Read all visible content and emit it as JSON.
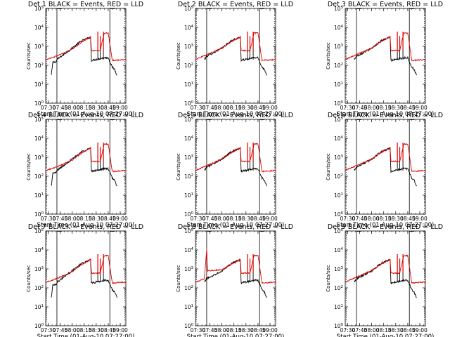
{
  "chart_data": [
    {
      "type": "line",
      "title": "Det 1  BLACK = Events, RED = LLD",
      "xlabel": "Start Time (01-Aug-10 07:27:00)",
      "ylabel": "Counts/sec",
      "x_ticks": [
        "07:30",
        "07:45",
        "08:00",
        "08:15",
        "08:30",
        "08:45",
        "09:00"
      ],
      "y_ticks": [
        "10^0",
        "10^1",
        "10^2",
        "10^3",
        "10^4",
        "10^5"
      ],
      "yscale": "log",
      "xlim": [
        "07:27",
        "09:07"
      ],
      "ylim": [
        1,
        100000
      ],
      "markers": [
        "07:41",
        "08:47"
      ],
      "series": [
        {
          "name": "Events",
          "color": "#000000",
          "x": [
            "07:34",
            "07:36",
            "07:40",
            "07:41",
            "08:00",
            "08:12",
            "08:23",
            "08:24",
            "08:40",
            "08:45",
            "08:50",
            "08:53",
            "08:56"
          ],
          "y": [
            30,
            150,
            150,
            200,
            800,
            2000,
            3000,
            180,
            250,
            250,
            80,
            60,
            30
          ]
        },
        {
          "name": "LLD",
          "color": "#e00000",
          "x": [
            "07:27",
            "07:40",
            "08:00",
            "08:12",
            "08:23",
            "08:24",
            "08:35",
            "08:40",
            "08:45",
            "08:50",
            "09:07"
          ],
          "y": [
            200,
            300,
            700,
            1700,
            3200,
            600,
            600,
            5000,
            5000,
            180,
            200
          ]
        }
      ]
    },
    {
      "type": "line",
      "title": "Det 2  BLACK = Events, RED = LLD",
      "xlabel": "Start Time (01-Aug-10 07:27:00)",
      "ylabel": "Counts/sec",
      "x_ticks": [
        "07:30",
        "07:45",
        "08:00",
        "08:15",
        "08:30",
        "08:45",
        "09:00"
      ],
      "y_ticks": [
        "10^0",
        "10^1",
        "10^2",
        "10^3",
        "10^4",
        "10^5"
      ],
      "yscale": "log",
      "xlim": [
        "07:27",
        "09:07"
      ],
      "ylim": [
        1,
        100000
      ],
      "markers": [
        "07:41",
        "08:47"
      ],
      "series": [
        {
          "name": "Events",
          "color": "#000000",
          "x": [
            "07:38",
            "07:41",
            "08:00",
            "08:12",
            "08:23",
            "08:24",
            "08:40",
            "08:45",
            "08:50",
            "08:53",
            "08:56"
          ],
          "y": [
            200,
            300,
            800,
            2000,
            3000,
            180,
            250,
            250,
            80,
            60,
            30
          ]
        },
        {
          "name": "LLD",
          "color": "#e00000",
          "x": [
            "07:27",
            "07:40",
            "08:00",
            "08:12",
            "08:23",
            "08:24",
            "08:35",
            "08:40",
            "08:45",
            "08:50",
            "09:07"
          ],
          "y": [
            200,
            350,
            800,
            1800,
            3200,
            600,
            600,
            5000,
            5000,
            180,
            200
          ]
        }
      ]
    },
    {
      "type": "line",
      "title": "Det 3  BLACK = Events, RED = LLD",
      "xlabel": "Start Time (01-Aug-10 07:27:00)",
      "ylabel": "Counts/sec",
      "x_ticks": [
        "07:30",
        "07:45",
        "08:00",
        "08:15",
        "08:30",
        "08:45",
        "09:00"
      ],
      "y_ticks": [
        "10^0",
        "10^1",
        "10^2",
        "10^3",
        "10^4",
        "10^5"
      ],
      "yscale": "log",
      "xlim": [
        "07:27",
        "09:07"
      ],
      "ylim": [
        1,
        100000
      ],
      "markers": [
        "07:41",
        "08:47"
      ],
      "series": [
        {
          "name": "Events",
          "color": "#000000",
          "x": [
            "07:38",
            "07:41",
            "08:00",
            "08:12",
            "08:23",
            "08:24",
            "08:40",
            "08:45",
            "08:50",
            "08:53",
            "08:56"
          ],
          "y": [
            200,
            300,
            800,
            2000,
            3000,
            180,
            250,
            250,
            80,
            60,
            30
          ]
        },
        {
          "name": "LLD",
          "color": "#e00000",
          "x": [
            "07:27",
            "07:40",
            "08:00",
            "08:12",
            "08:23",
            "08:24",
            "08:35",
            "08:40",
            "08:45",
            "08:50",
            "09:07"
          ],
          "y": [
            200,
            350,
            800,
            1800,
            3200,
            600,
            600,
            5000,
            5000,
            180,
            200
          ]
        }
      ]
    },
    {
      "type": "line",
      "title": "Det 4  BLACK = Events, RED = LLD",
      "xlabel": "Start Time (01-Aug-10 07:27:00)",
      "ylabel": "Counts/sec",
      "x_ticks": [
        "07:30",
        "07:45",
        "08:00",
        "08:15",
        "08:30",
        "08:45",
        "09:00"
      ],
      "y_ticks": [
        "10^0",
        "10^1",
        "10^2",
        "10^3",
        "10^4",
        "10^5"
      ],
      "yscale": "log",
      "xlim": [
        "07:27",
        "09:07"
      ],
      "ylim": [
        1,
        100000
      ],
      "markers": [
        "07:41",
        "08:47"
      ],
      "series": [
        {
          "name": "Events",
          "color": "#000000",
          "x": [
            "07:34",
            "07:36",
            "07:40",
            "07:41",
            "08:00",
            "08:12",
            "08:23",
            "08:24",
            "08:40",
            "08:45",
            "08:50",
            "08:53",
            "08:56"
          ],
          "y": [
            30,
            150,
            150,
            200,
            800,
            2000,
            3000,
            180,
            250,
            250,
            80,
            60,
            30
          ]
        },
        {
          "name": "LLD",
          "color": "#e00000",
          "x": [
            "07:27",
            "07:40",
            "08:00",
            "08:12",
            "08:23",
            "08:24",
            "08:35",
            "08:40",
            "08:45",
            "08:50",
            "09:07"
          ],
          "y": [
            200,
            300,
            700,
            1700,
            3200,
            600,
            600,
            5000,
            5000,
            180,
            200
          ]
        }
      ]
    },
    {
      "type": "line",
      "title": "Det 5  BLACK = Events, RED = LLD",
      "xlabel": "Start Time (01-Aug-10 07:27:00)",
      "ylabel": "Counts/sec",
      "x_ticks": [
        "07:30",
        "07:45",
        "08:00",
        "08:15",
        "08:30",
        "08:45",
        "09:00"
      ],
      "y_ticks": [
        "10^0",
        "10^1",
        "10^2",
        "10^3",
        "10^4",
        "10^5"
      ],
      "yscale": "log",
      "xlim": [
        "07:27",
        "09:07"
      ],
      "ylim": [
        1,
        100000
      ],
      "markers": [
        "07:41",
        "08:47"
      ],
      "series": [
        {
          "name": "Events",
          "color": "#000000",
          "x": [
            "07:38",
            "07:41",
            "08:00",
            "08:12",
            "08:23",
            "08:24",
            "08:40",
            "08:45",
            "08:50",
            "08:53",
            "08:56"
          ],
          "y": [
            200,
            300,
            800,
            2000,
            3000,
            180,
            250,
            250,
            80,
            60,
            30
          ]
        },
        {
          "name": "LLD",
          "color": "#e00000",
          "x": [
            "07:27",
            "07:40",
            "08:00",
            "08:12",
            "08:23",
            "08:24",
            "08:35",
            "08:40",
            "08:45",
            "08:50",
            "09:07"
          ],
          "y": [
            200,
            350,
            800,
            1800,
            3200,
            600,
            600,
            5000,
            5000,
            180,
            200
          ]
        }
      ]
    },
    {
      "type": "line",
      "title": "Det 6  BLACK = Events, RED = LLD",
      "xlabel": "Start Time (01-Aug-10 07:27:00)",
      "ylabel": "Counts/sec",
      "x_ticks": [
        "07:30",
        "07:45",
        "08:00",
        "08:15",
        "08:30",
        "08:45",
        "09:00"
      ],
      "y_ticks": [
        "10^0",
        "10^1",
        "10^2",
        "10^3",
        "10^4",
        "10^5"
      ],
      "yscale": "log",
      "xlim": [
        "07:27",
        "09:07"
      ],
      "ylim": [
        1,
        100000
      ],
      "markers": [
        "07:41",
        "08:47"
      ],
      "series": [
        {
          "name": "Events",
          "color": "#000000",
          "x": [
            "07:38",
            "07:41",
            "08:00",
            "08:12",
            "08:23",
            "08:24",
            "08:40",
            "08:45",
            "08:50",
            "08:53",
            "08:56"
          ],
          "y": [
            200,
            300,
            800,
            2000,
            3000,
            180,
            250,
            250,
            80,
            60,
            30
          ]
        },
        {
          "name": "LLD",
          "color": "#e00000",
          "x": [
            "07:27",
            "07:40",
            "08:00",
            "08:12",
            "08:23",
            "08:24",
            "08:35",
            "08:40",
            "08:45",
            "08:50",
            "09:07"
          ],
          "y": [
            200,
            350,
            800,
            1800,
            3200,
            600,
            600,
            5000,
            5000,
            180,
            200
          ]
        }
      ]
    },
    {
      "type": "line",
      "title": "Det 7  BLACK = Events, RED = LLD",
      "xlabel": "Start Time (01-Aug-10 07:27:00)",
      "ylabel": "Counts/sec",
      "x_ticks": [
        "07:30",
        "07:45",
        "08:00",
        "08:15",
        "08:30",
        "08:45",
        "09:00"
      ],
      "y_ticks": [
        "10^0",
        "10^1",
        "10^2",
        "10^3",
        "10^4",
        "10^5"
      ],
      "yscale": "log",
      "xlim": [
        "07:27",
        "09:07"
      ],
      "ylim": [
        1,
        100000
      ],
      "markers": [
        "07:41",
        "08:47"
      ],
      "series": [
        {
          "name": "Events",
          "color": "#000000",
          "x": [
            "07:34",
            "07:36",
            "07:40",
            "07:41",
            "08:00",
            "08:12",
            "08:23",
            "08:24",
            "08:40",
            "08:45",
            "08:50",
            "08:53",
            "08:56"
          ],
          "y": [
            30,
            150,
            150,
            200,
            800,
            2000,
            3000,
            180,
            250,
            250,
            80,
            60,
            30
          ]
        },
        {
          "name": "LLD",
          "color": "#e00000",
          "x": [
            "07:27",
            "07:40",
            "08:00",
            "08:12",
            "08:23",
            "08:24",
            "08:35",
            "08:40",
            "08:45",
            "08:50",
            "09:07"
          ],
          "y": [
            200,
            300,
            700,
            1700,
            3200,
            600,
            600,
            5000,
            5000,
            180,
            200
          ]
        }
      ]
    },
    {
      "type": "line",
      "title": "Det 8  BLACK = Events, RED = LLD",
      "xlabel": "Start Time (01-Aug-10 07:27:00)",
      "ylabel": "Counts/sec",
      "x_ticks": [
        "07:30",
        "07:45",
        "08:00",
        "08:15",
        "08:30",
        "08:45",
        "09:00"
      ],
      "y_ticks": [
        "10^0",
        "10^1",
        "10^2",
        "10^3",
        "10^4",
        "10^5"
      ],
      "yscale": "log",
      "xlim": [
        "07:27",
        "09:07"
      ],
      "ylim": [
        1,
        100000
      ],
      "markers": [
        "07:41",
        "08:47"
      ],
      "series": [
        {
          "name": "Events",
          "color": "#000000",
          "x": [
            "07:38",
            "07:41",
            "08:00",
            "08:12",
            "08:23",
            "08:24",
            "08:40",
            "08:45",
            "08:50",
            "08:53",
            "08:56"
          ],
          "y": [
            200,
            300,
            800,
            2000,
            3000,
            180,
            250,
            250,
            80,
            60,
            30
          ]
        },
        {
          "name": "LLD",
          "color": "#e00000",
          "x": [
            "07:27",
            "07:38",
            "07:41",
            "07:42",
            "08:00",
            "08:12",
            "08:23",
            "08:24",
            "08:35",
            "08:40",
            "08:45",
            "08:50",
            "09:07"
          ],
          "y": [
            200,
            300,
            10000,
            800,
            900,
            1800,
            3200,
            600,
            600,
            5000,
            5000,
            180,
            200
          ]
        }
      ]
    },
    {
      "type": "line",
      "title": "Det 9  BLACK = Events, RED = LLD",
      "xlabel": "Start Time (01-Aug-10 07:27:00)",
      "ylabel": "Counts/sec",
      "x_ticks": [
        "07:30",
        "07:45",
        "08:00",
        "08:15",
        "08:30",
        "08:45",
        "09:00"
      ],
      "y_ticks": [
        "10^0",
        "10^1",
        "10^2",
        "10^3",
        "10^4",
        "10^5"
      ],
      "yscale": "log",
      "xlim": [
        "07:27",
        "09:07"
      ],
      "ylim": [
        1,
        100000
      ],
      "markers": [
        "07:41",
        "08:47"
      ],
      "series": [
        {
          "name": "Events",
          "color": "#000000",
          "x": [
            "07:38",
            "07:41",
            "08:00",
            "08:12",
            "08:23",
            "08:24",
            "08:40",
            "08:45",
            "08:50",
            "08:53",
            "08:56"
          ],
          "y": [
            200,
            300,
            800,
            2000,
            3000,
            180,
            250,
            250,
            80,
            60,
            30
          ]
        },
        {
          "name": "LLD",
          "color": "#e00000",
          "x": [
            "07:27",
            "07:40",
            "08:00",
            "08:12",
            "08:23",
            "08:24",
            "08:35",
            "08:40",
            "08:45",
            "08:50",
            "09:07"
          ],
          "y": [
            200,
            350,
            800,
            1800,
            3200,
            600,
            600,
            5000,
            5000,
            180,
            200
          ]
        }
      ]
    }
  ]
}
